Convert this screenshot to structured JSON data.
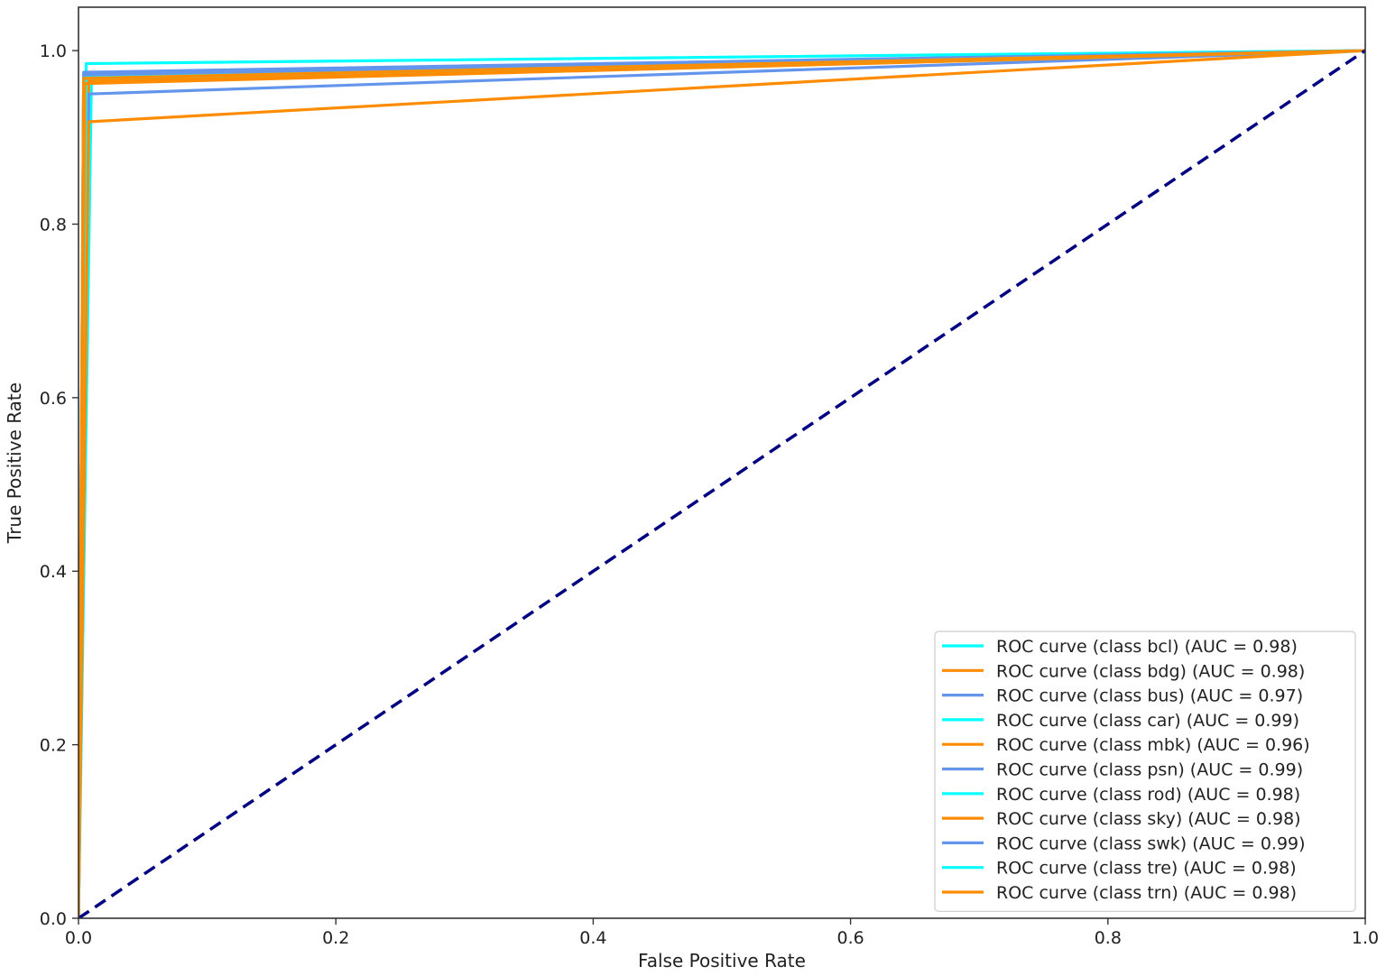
{
  "chart_data": {
    "type": "line",
    "title": "",
    "xlabel": "False Positive Rate",
    "ylabel": "True Positive Rate",
    "xlim": [
      0.0,
      1.0
    ],
    "ylim": [
      0.0,
      1.05
    ],
    "x_ticks": [
      "0.0",
      "0.2",
      "0.4",
      "0.6",
      "0.8",
      "1.0"
    ],
    "y_ticks": [
      "0.0",
      "0.2",
      "0.4",
      "0.6",
      "0.8",
      "1.0"
    ],
    "grid": false,
    "legend_position": "lower-right",
    "series": [
      {
        "name": "ROC curve (class bcl) (AUC = 0.98)",
        "color": "#00ffff",
        "points": [
          [
            0,
            0
          ],
          [
            0.01,
            0.96
          ],
          [
            0.01,
            0.97
          ],
          [
            1.0,
            1.0
          ]
        ]
      },
      {
        "name": "ROC curve (class bdg) (AUC = 0.98)",
        "color": "#ff8c00",
        "points": [
          [
            0,
            0
          ],
          [
            0.008,
            0.965
          ],
          [
            1.0,
            1.0
          ]
        ]
      },
      {
        "name": "ROC curve (class bus) (AUC = 0.97)",
        "color": "#6495ed",
        "points": [
          [
            0,
            0
          ],
          [
            0.008,
            0.95
          ],
          [
            1.0,
            1.0
          ]
        ]
      },
      {
        "name": "ROC curve (class car) (AUC = 0.99)",
        "color": "#00ffff",
        "points": [
          [
            0,
            0
          ],
          [
            0.006,
            0.985
          ],
          [
            1.0,
            1.0
          ]
        ]
      },
      {
        "name": "ROC curve (class mbk) (AUC = 0.96)",
        "color": "#ff8c00",
        "points": [
          [
            0,
            0
          ],
          [
            0.008,
            0.918
          ],
          [
            1.0,
            1.0
          ]
        ]
      },
      {
        "name": "ROC curve (class psn) (AUC = 0.99)",
        "color": "#6495ed",
        "points": [
          [
            0,
            0
          ],
          [
            0.004,
            0.975
          ],
          [
            1.0,
            1.0
          ]
        ]
      },
      {
        "name": "ROC curve (class rod) (AUC = 0.98)",
        "color": "#00ffff",
        "points": [
          [
            0,
            0
          ],
          [
            0.004,
            0.97
          ],
          [
            1.0,
            1.0
          ]
        ]
      },
      {
        "name": "ROC curve (class sky) (AUC = 0.98)",
        "color": "#ff8c00",
        "points": [
          [
            0,
            0
          ],
          [
            0.005,
            0.962
          ],
          [
            1.0,
            1.0
          ]
        ]
      },
      {
        "name": "ROC curve (class swk) (AUC = 0.99)",
        "color": "#6495ed",
        "points": [
          [
            0,
            0
          ],
          [
            0.004,
            0.972
          ],
          [
            1.0,
            1.0
          ]
        ]
      },
      {
        "name": "ROC curve (class tre) (AUC = 0.98)",
        "color": "#00ffff",
        "points": [
          [
            0,
            0
          ],
          [
            0.004,
            0.968
          ],
          [
            1.0,
            1.0
          ]
        ]
      },
      {
        "name": "ROC curve (class trn) (AUC = 0.98)",
        "color": "#ff8c00",
        "points": [
          [
            0,
            0
          ],
          [
            0.004,
            0.968
          ],
          [
            1.0,
            1.0
          ]
        ]
      }
    ],
    "reference_line": {
      "color": "#000080",
      "style": "dashed",
      "points": [
        [
          0,
          0
        ],
        [
          1,
          1
        ]
      ]
    }
  }
}
